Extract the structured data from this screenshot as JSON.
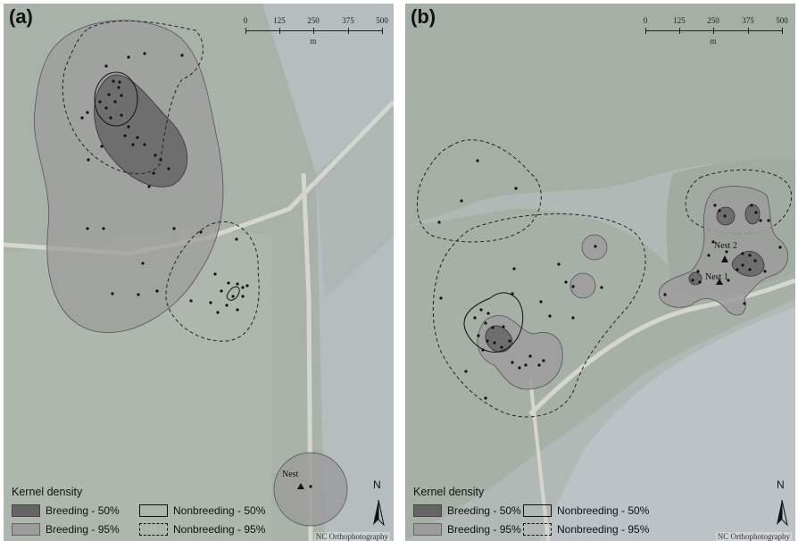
{
  "panels": [
    {
      "label": "(a)",
      "scale": {
        "ticks": [
          "0",
          "125",
          "250",
          "375",
          "500"
        ],
        "unit": "m"
      },
      "map_labels": {
        "nest": "Nest"
      }
    },
    {
      "label": "(b)",
      "scale": {
        "ticks": [
          "0",
          "125",
          "250",
          "375",
          "500"
        ],
        "unit": "m"
      },
      "map_labels": {
        "nest1": "Nest 1",
        "nest2": "Nest 2"
      }
    }
  ],
  "legend": {
    "title": "Kernel density",
    "breeding_50": "Breeding - 50%",
    "breeding_95": "Breeding - 95%",
    "nonbreeding_50": "Nonbreeding - 50%",
    "nonbreeding_95": "Nonbreeding - 95%"
  },
  "north_arrow": {
    "letter": "N"
  },
  "credit": "NC Orthophotography",
  "colors": {
    "breeding_50_fill": "#656565",
    "breeding_95_fill": "#9c9c9c",
    "water": "#b8bfc4",
    "marsh": "#a9b3a9",
    "road": "#d8d8d0"
  },
  "icons": [
    "north-arrow-icon",
    "nest-triangle-icon"
  ]
}
